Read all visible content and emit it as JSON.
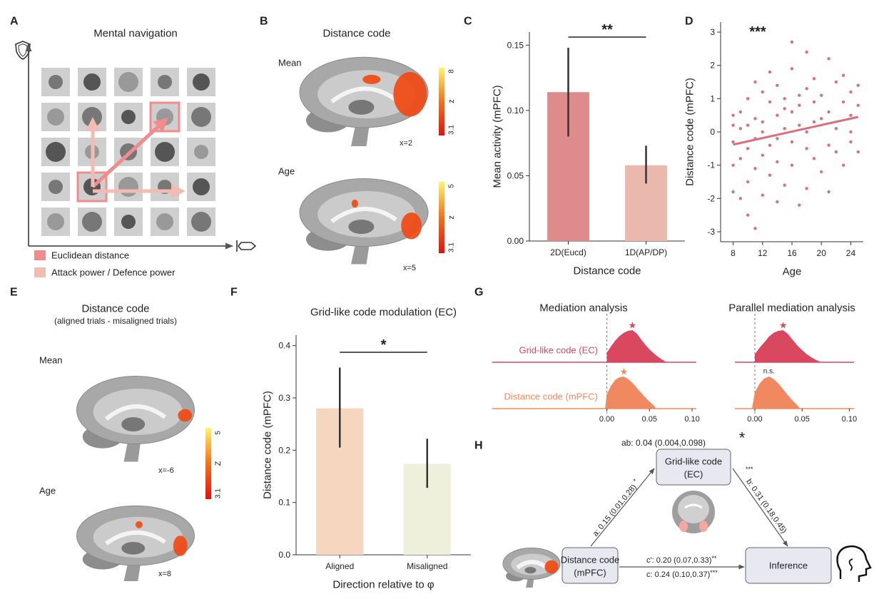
{
  "panel_a": {
    "label": "A",
    "title": "Mental navigation",
    "legend": [
      {
        "name": "Euclidean distance",
        "color": "#f08c8c"
      },
      {
        "name": "Attack power / Defence power",
        "color": "#f2bcb2"
      }
    ]
  },
  "panel_b": {
    "label": "B",
    "title": "Distance code",
    "maps": [
      {
        "name": "Mean",
        "slice": "x=2",
        "colorbar": {
          "max": 8,
          "label": "z",
          "min": 3.1
        }
      },
      {
        "name": "Age",
        "slice": "x=5",
        "colorbar": {
          "max": 5,
          "label": "z",
          "min": 3.1
        }
      }
    ]
  },
  "panel_e": {
    "label": "E",
    "title": "Distance code",
    "subtitle": "(aligned trials - misaligned trials)",
    "maps": [
      {
        "name": "Mean",
        "slice": "x=-6"
      },
      {
        "name": "Age",
        "slice": "x=8"
      }
    ],
    "colorbar": {
      "max": 5,
      "label": "Z",
      "min": 3.1
    }
  },
  "chart_data": [
    {
      "type": "bar",
      "panel": "C",
      "categories": [
        "2D(Eucd)",
        "1D(AP/DP)"
      ],
      "values": [
        0.114,
        0.058
      ],
      "ci": [
        [
          0.08,
          0.148
        ],
        [
          0.044,
          0.073
        ]
      ],
      "colors": [
        "#e08b8b",
        "#ebb8ae"
      ],
      "ylim": [
        0,
        0.16
      ],
      "yticks": [
        {
          "value": 0,
          "label": "0.00"
        },
        {
          "value": 0.05,
          "label": "0.05"
        },
        {
          "value": 0.1,
          "label": "0.10"
        },
        {
          "value": 0.15,
          "label": "0.15"
        }
      ],
      "xlabel": "Distance code",
      "ylabel": "Mean activity (mPFC)",
      "significance": "**"
    },
    {
      "type": "scatter",
      "panel": "D",
      "x": [
        8,
        8,
        8,
        8,
        8,
        9,
        9,
        9,
        9,
        10,
        10,
        10,
        10,
        10,
        11,
        11,
        11,
        11,
        11,
        12,
        12,
        12,
        12,
        12,
        13,
        13,
        13,
        13,
        14,
        14,
        14,
        14,
        14,
        15,
        15,
        15,
        15,
        16,
        16,
        16,
        16,
        16,
        17,
        17,
        17,
        17,
        18,
        18,
        18,
        18,
        18,
        19,
        19,
        19,
        19,
        20,
        20,
        20,
        21,
        21,
        21,
        21,
        22,
        22,
        22,
        23,
        23,
        23,
        24,
        24,
        24,
        24,
        25,
        25,
        25
      ],
      "values": [
        -0.3,
        0.2,
        -1.8,
        -1.0,
        0.5,
        -0.8,
        0.1,
        -2.0,
        0.6,
        -0.5,
        1.0,
        -1.5,
        0.2,
        -2.5,
        -0.2,
        1.5,
        -1.1,
        0.4,
        -2.9,
        0.3,
        -0.7,
        1.2,
        -1.9,
        0.0,
        -0.4,
        0.9,
        -1.3,
        1.8,
        0.5,
        -0.9,
        1.4,
        -0.2,
        -2.1,
        0.7,
        -1.6,
        1.0,
        0.1,
        1.9,
        -0.3,
        0.6,
        2.7,
        -1.0,
        0.2,
        1.1,
        -2.2,
        0.8,
        2.4,
        -0.5,
        1.3,
        0.0,
        -1.7,
        0.9,
        -0.8,
        1.6,
        0.3,
        0.4,
        -1.2,
        1.1,
        2.2,
        0.6,
        -0.4,
        -1.8,
        1.5,
        0.1,
        -0.6,
        0.9,
        -1.0,
        1.7,
        0.5,
        1.2,
        -0.3,
        0.0,
        1.4,
        -0.6,
        0.8
      ],
      "fit": {
        "x": [
          8,
          25
        ],
        "values": [
          -0.38,
          0.45
        ]
      },
      "color": "#d9707e",
      "xlim": [
        6.3,
        25.7
      ],
      "xticks": [
        8,
        12,
        16,
        20,
        24
      ],
      "ylim": [
        -3.3,
        3.3
      ],
      "yticks": [
        -3,
        -2,
        -1,
        0,
        1,
        2,
        3
      ],
      "xlabel": "Age",
      "ylabel": "Distance code (mPFC)",
      "annotation": "***"
    },
    {
      "type": "bar",
      "panel": "F",
      "title": "Grid-like code modulation (EC)",
      "categories": [
        "Aligned",
        "Misaligned"
      ],
      "values": [
        0.28,
        0.174
      ],
      "ci": [
        [
          0.205,
          0.358
        ],
        [
          0.128,
          0.222
        ]
      ],
      "colors": [
        "#f6d6be",
        "#eff0dc"
      ],
      "ylim": [
        0,
        0.42
      ],
      "yticks": [
        {
          "value": 0,
          "label": "0.0"
        },
        {
          "value": 0.1,
          "label": "0.1"
        },
        {
          "value": 0.2,
          "label": "0.2"
        },
        {
          "value": 0.3,
          "label": "0.3"
        },
        {
          "value": 0.4,
          "label": "0.4"
        }
      ],
      "xlabel": "Direction relative to φ",
      "ylabel": "Distance code (mPFC)",
      "significance": "*"
    },
    {
      "type": "density",
      "panel": "G",
      "series": [
        {
          "name": "Grid-like code (EC)",
          "color": "#d9485f"
        },
        {
          "name": "Distance code (mPFC)",
          "color": "#f0895f"
        }
      ],
      "analyses": [
        {
          "title": "Mediation analysis",
          "curves": [
            {
              "x": [
                0,
                0.005,
                0.01,
                0.015,
                0.02,
                0.025,
                0.03,
                0.035,
                0.04,
                0.045,
                0.05,
                0.055,
                0.06,
                0.065,
                0.07
              ],
              "values": [
                0.3,
                0.5,
                0.68,
                0.82,
                0.92,
                0.98,
                1,
                0.9,
                0.72,
                0.55,
                0.4,
                0.28,
                0.17,
                0.08,
                0
              ],
              "annotation": "★"
            },
            {
              "x": [
                -0.002,
                0,
                0.005,
                0.01,
                0.015,
                0.02,
                0.025,
                0.03,
                0.035,
                0.04,
                0.045,
                0.05,
                0.055,
                0.058
              ],
              "values": [
                0,
                0.45,
                0.72,
                0.9,
                0.98,
                1,
                0.92,
                0.8,
                0.65,
                0.5,
                0.35,
                0.22,
                0.1,
                0
              ],
              "annotation": "★"
            }
          ]
        },
        {
          "title": "Parallel mediation analysis",
          "curves": [
            {
              "x": [
                0,
                0.005,
                0.01,
                0.015,
                0.02,
                0.025,
                0.03,
                0.035,
                0.04,
                0.045,
                0.05,
                0.055,
                0.06,
                0.065,
                0.07
              ],
              "values": [
                0.25,
                0.45,
                0.62,
                0.8,
                0.92,
                0.98,
                1,
                0.88,
                0.7,
                0.52,
                0.38,
                0.25,
                0.15,
                0.07,
                0
              ],
              "annotation": "★"
            },
            {
              "x": [
                -0.003,
                0,
                0.005,
                0.01,
                0.015,
                0.02,
                0.025,
                0.03,
                0.035,
                0.04,
                0.045,
                0.048
              ],
              "values": [
                0,
                0.5,
                0.78,
                0.94,
                1,
                0.92,
                0.78,
                0.6,
                0.42,
                0.25,
                0.1,
                0
              ],
              "annotation": "n.s."
            }
          ]
        }
      ],
      "xlim": [
        -0.003,
        0.105
      ],
      "xticks": [
        {
          "value": 0,
          "label": "0.00"
        },
        {
          "value": 0.05,
          "label": "0.05"
        },
        {
          "value": 0.1,
          "label": "0.10"
        }
      ],
      "refline": 0
    }
  ],
  "panel_h": {
    "label": "H",
    "nodes": [
      {
        "label": [
          "Grid-like code",
          "(EC)"
        ]
      },
      {
        "label": [
          "Distance code",
          "(mPFC)"
        ]
      },
      {
        "label": [
          "Inference"
        ]
      }
    ],
    "indirect": "ab: 0.04 (0.004,0.098)",
    "indirect_sig": "*",
    "paths": [
      {
        "label": "a: 0.15 (0.01,0.28)",
        "sig": "*"
      },
      {
        "label": "b: 0.31 (0.18,0.45)",
        "sig": "***"
      },
      {
        "label": "c': 0.20 (0.07,0.33)",
        "sig": "**"
      },
      {
        "label": "c: 0.24 (0.10,0.37)",
        "sig": "***"
      }
    ]
  }
}
